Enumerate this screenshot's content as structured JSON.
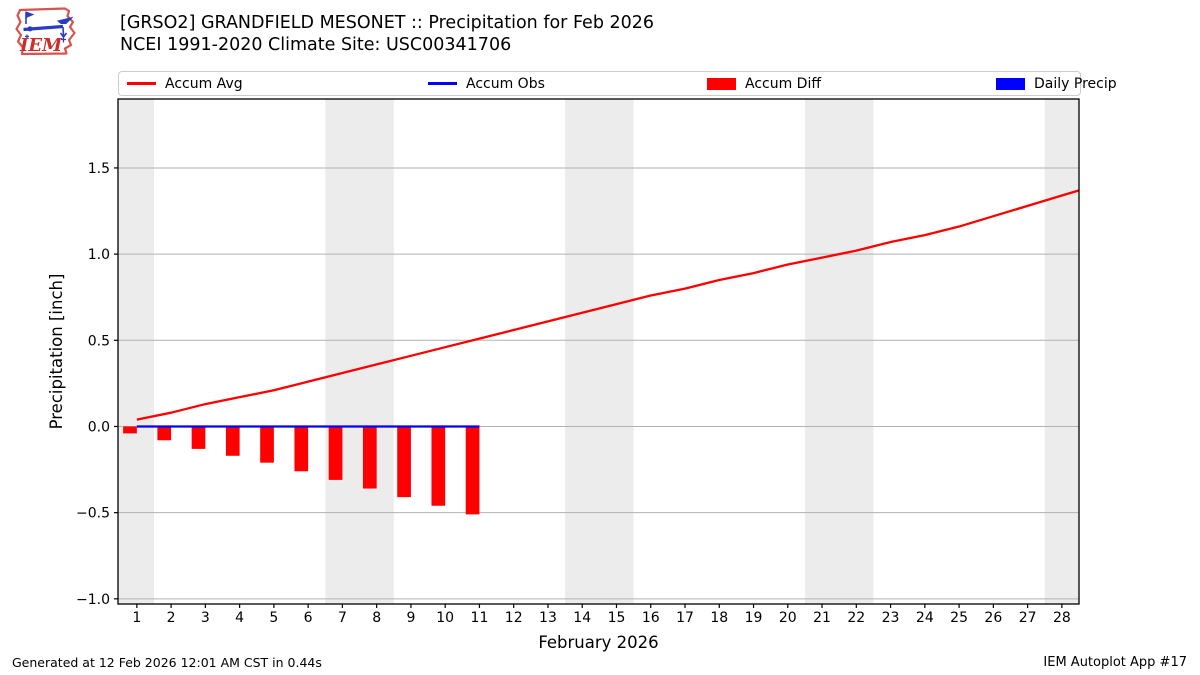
{
  "header": {
    "logo_text": "IEM",
    "title_line1": "[GRSO2] GRANDFIELD MESONET :: Precipitation for Feb 2026",
    "title_line2": "NCEI 1991-2020 Climate Site: USC00341706"
  },
  "footer": {
    "generated": "Generated at 12 Feb 2026 12:01 AM CST in 0.44s",
    "app": "IEM Autoplot App #17"
  },
  "colors": {
    "accum_avg": "#ff0000",
    "accum_obs": "#0000ff",
    "accum_diff": "#ff0000",
    "daily_precip": "#0000ff",
    "weekend_band": "#ececec",
    "grid": "#b2b2b2",
    "spine": "#000000"
  },
  "legend": {
    "items": [
      {
        "label": "Accum Avg",
        "swatch": "line",
        "color_key": "accum_avg"
      },
      {
        "label": "Accum Obs",
        "swatch": "line",
        "color_key": "accum_obs"
      },
      {
        "label": "Accum Diff",
        "swatch": "patch",
        "color_key": "accum_diff"
      },
      {
        "label": "Daily Precip",
        "swatch": "patch",
        "color_key": "daily_precip"
      }
    ]
  },
  "chart_data": {
    "type": "line+bar",
    "xlabel": "February 2026",
    "ylabel": "Precipitation [inch]",
    "xlim": [
      0.45,
      28.5
    ],
    "ylim": [
      -1.03,
      1.9
    ],
    "xticks": [
      1,
      2,
      3,
      4,
      5,
      6,
      7,
      8,
      9,
      10,
      11,
      12,
      13,
      14,
      15,
      16,
      17,
      18,
      19,
      20,
      21,
      22,
      23,
      24,
      25,
      26,
      27,
      28
    ],
    "ytick_values": [
      1.5,
      1.0,
      0.5,
      0.0,
      -0.5,
      -1.0
    ],
    "ytick_labels": [
      "1.5",
      "1.0",
      "0.5",
      "0.0",
      "−0.5",
      "−1.0"
    ],
    "grid": true,
    "weekend_bands": [
      [
        0.45,
        1.5
      ],
      [
        6.5,
        8.5
      ],
      [
        13.5,
        15.5
      ],
      [
        20.5,
        22.5
      ],
      [
        27.5,
        28.5
      ]
    ],
    "series": [
      {
        "name": "Accum Diff",
        "type": "bar",
        "color_key": "accum_diff",
        "bar_width": 0.4,
        "bar_align": "right_edge",
        "x": [
          1,
          2,
          3,
          4,
          5,
          6,
          7,
          8,
          9,
          10,
          11
        ],
        "y": [
          -0.04,
          -0.08,
          -0.13,
          -0.17,
          -0.21,
          -0.26,
          -0.31,
          -0.36,
          -0.41,
          -0.46,
          -0.51
        ]
      },
      {
        "name": "Daily Precip",
        "type": "bar",
        "color_key": "daily_precip",
        "bar_width": 0.4,
        "bar_align": "right_edge",
        "x": [],
        "y": []
      },
      {
        "name": "Accum Obs",
        "type": "line",
        "color_key": "accum_obs",
        "x": [
          1,
          11
        ],
        "y": [
          0,
          0
        ]
      },
      {
        "name": "Accum Avg",
        "type": "line",
        "color_key": "accum_avg",
        "x": [
          1,
          2,
          3,
          4,
          5,
          6,
          7,
          8,
          9,
          10,
          11,
          12,
          13,
          14,
          15,
          16,
          17,
          18,
          19,
          20,
          21,
          22,
          23,
          24,
          25,
          26,
          27,
          28,
          28.5
        ],
        "y": [
          0.04,
          0.08,
          0.13,
          0.17,
          0.21,
          0.26,
          0.31,
          0.36,
          0.41,
          0.46,
          0.51,
          0.56,
          0.61,
          0.66,
          0.71,
          0.76,
          0.8,
          0.85,
          0.89,
          0.94,
          0.98,
          1.02,
          1.07,
          1.11,
          1.16,
          1.22,
          1.28,
          1.34,
          1.37
        ]
      }
    ]
  }
}
